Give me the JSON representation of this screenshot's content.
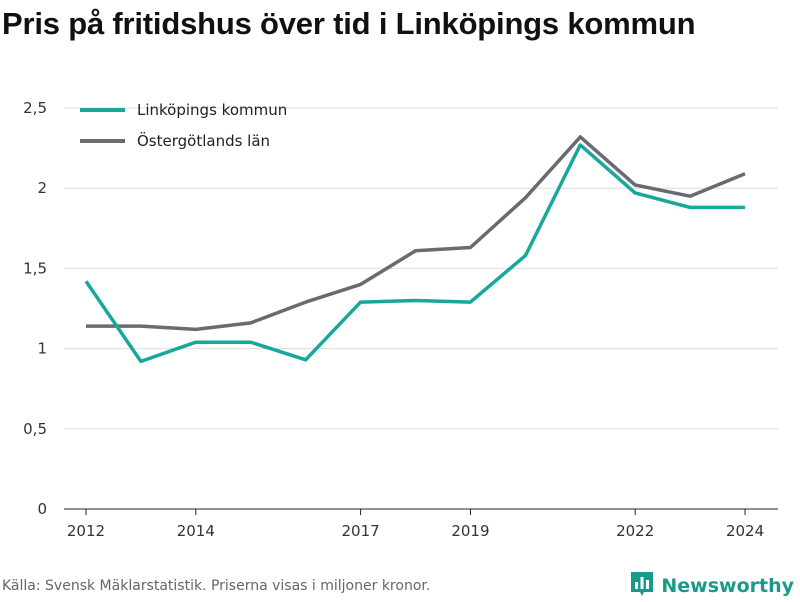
{
  "title": "Pris på fritidshus över tid i Linköpings kommun",
  "source": "Källa: Svensk Mäklarstatistik. Priserna visas i miljoner kronor.",
  "brand": {
    "name": "Newsworthy",
    "icon": "bar-chart-logo-icon",
    "color": "#1a9a8c"
  },
  "chart_data": {
    "type": "line",
    "x": [
      2012,
      2013,
      2014,
      2015,
      2016,
      2017,
      2018,
      2019,
      2020,
      2021,
      2022,
      2023,
      2024
    ],
    "x_tick_values": [
      2012,
      2014,
      2017,
      2019,
      2022,
      2024
    ],
    "x_tick_labels": [
      "2012",
      "2014",
      "2017",
      "2019",
      "2022",
      "2024"
    ],
    "y_tick_values": [
      0,
      0.5,
      1,
      1.5,
      2,
      2.5
    ],
    "y_tick_labels": [
      "0",
      "0,5",
      "1",
      "1,5",
      "2",
      "2,5"
    ],
    "xlim": [
      2011.6,
      2024.6
    ],
    "ylim": [
      0,
      2.5
    ],
    "grid": true,
    "legend_position": "top-left",
    "series": [
      {
        "name": "Linköpings kommun",
        "color": "#17a89a",
        "values": [
          1.42,
          0.92,
          1.04,
          1.04,
          0.93,
          1.29,
          1.3,
          1.29,
          1.58,
          2.27,
          1.97,
          1.88,
          1.88
        ]
      },
      {
        "name": "Östergötlands län",
        "color": "#6b6a72",
        "values": [
          1.14,
          1.14,
          1.12,
          1.16,
          1.29,
          1.4,
          1.61,
          1.63,
          1.94,
          2.32,
          2.02,
          1.95,
          2.09
        ]
      }
    ]
  }
}
